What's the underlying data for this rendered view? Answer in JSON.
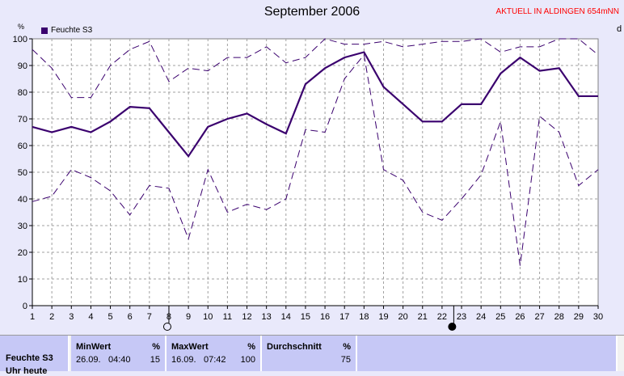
{
  "title": "September 2006",
  "live_label": "AKTUELL IN ALDINGEN 654mNN",
  "right_mark": "d",
  "chart_data": {
    "type": "line",
    "title": "September 2006",
    "ylabel": "%",
    "x": [
      1,
      2,
      3,
      4,
      5,
      6,
      7,
      8,
      9,
      10,
      11,
      12,
      13,
      14,
      15,
      16,
      17,
      18,
      19,
      20,
      21,
      22,
      23,
      24,
      25,
      26,
      27,
      28,
      29,
      30
    ],
    "xlim": [
      1,
      30
    ],
    "ylim": [
      0,
      100
    ],
    "yticks": [
      0,
      10,
      20,
      30,
      40,
      50,
      60,
      70,
      80,
      90,
      100
    ],
    "grid": true,
    "legend": "top-left",
    "series": [
      {
        "name": "Feuchte S3",
        "style": "solid",
        "color": "#3a006e",
        "values": [
          67,
          65,
          67,
          65,
          69,
          74.5,
          74,
          65,
          56,
          67,
          70,
          72,
          68,
          64.5,
          83,
          89,
          93,
          95,
          82,
          75.5,
          69,
          69,
          75.5,
          75.5,
          87,
          93,
          88,
          89,
          78.5,
          78.5
        ]
      },
      {
        "name": "",
        "style": "dashed",
        "color": "#3a006e",
        "values": [
          96,
          89,
          78,
          78,
          90,
          96,
          99,
          84,
          89,
          88,
          93,
          93,
          97,
          91,
          93,
          100,
          98,
          98,
          99,
          97,
          98,
          99,
          99,
          100,
          95,
          97,
          97,
          100,
          100,
          94
        ]
      },
      {
        "name": "",
        "style": "dashed",
        "color": "#3a006e",
        "values": [
          39,
          41,
          51,
          48,
          43,
          34,
          45,
          44,
          25,
          51,
          35,
          38,
          36,
          40,
          66,
          65,
          85,
          94,
          51,
          47,
          35,
          32,
          40,
          49,
          69,
          15,
          71,
          65,
          45,
          51
        ]
      }
    ],
    "markers": [
      {
        "x": 8,
        "symbol": "empty-circle",
        "label": "full moon"
      },
      {
        "x": 22.6,
        "symbol": "filled-circle",
        "label": "new moon"
      }
    ]
  },
  "legend": {
    "label": "Feuchte S3"
  },
  "stats": {
    "series_label": "Feuchte S3",
    "series_label_2": "Uhr heute",
    "min": {
      "header": "MinWert",
      "unit": "%",
      "date": "26.09.",
      "time": "04:40",
      "value": "15"
    },
    "max": {
      "header": "MaxWert",
      "unit": "%",
      "date": "16.09.",
      "time": "07:42",
      "value": "100"
    },
    "avg": {
      "header": "Durchschnitt",
      "unit": "%",
      "value": "75"
    }
  }
}
